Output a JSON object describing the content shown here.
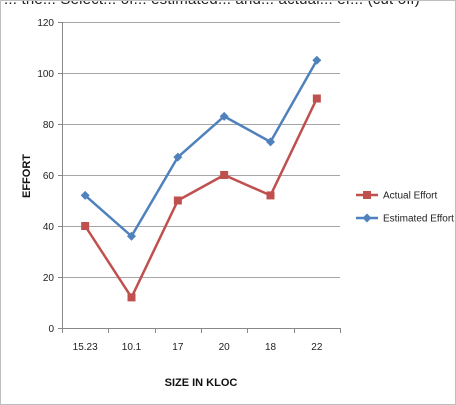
{
  "header_fragment": "... the... Select... of... estimated... and... actual... ef... (cut off)",
  "chart_data": {
    "type": "line",
    "title": "",
    "xlabel": "SIZE IN KLOC",
    "ylabel": "EFFORT",
    "categories": [
      "15.23",
      "10.1",
      "17",
      "20",
      "18",
      "22"
    ],
    "ylim": [
      0,
      120
    ],
    "ytick_step": 20,
    "grid": true,
    "legend_position": "right",
    "series": [
      {
        "name": "Actual Effort",
        "values": [
          40,
          12,
          50,
          60,
          52,
          90
        ],
        "color": "#c0504d",
        "marker": "square"
      },
      {
        "name": "Estimated Effort",
        "values": [
          52,
          36,
          67,
          83,
          73,
          105
        ],
        "color": "#4f81bd",
        "marker": "diamond"
      }
    ]
  }
}
